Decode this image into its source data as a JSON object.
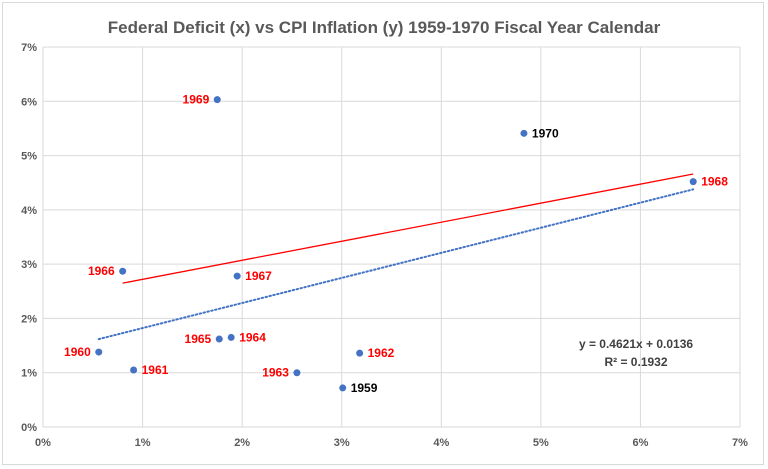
{
  "chart_data": {
    "type": "scatter",
    "title": "Federal Deficit (x) vs CPI Inflation (y) 1959-1970 Fiscal Year Calendar",
    "xlim": [
      0,
      0.07
    ],
    "ylim": [
      0,
      0.07
    ],
    "x_ticks": [
      "0%",
      "1%",
      "2%",
      "3%",
      "4%",
      "5%",
      "6%",
      "7%"
    ],
    "y_ticks": [
      "0%",
      "1%",
      "2%",
      "3%",
      "4%",
      "5%",
      "6%",
      "7%"
    ],
    "grid": true,
    "points": [
      {
        "label": "1959",
        "x": 0.0301,
        "y": 0.0072,
        "label_color": "#000000",
        "label_pos": "right"
      },
      {
        "label": "1960",
        "x": 0.0056,
        "y": 0.0138,
        "label_color": "#ff0000",
        "label_pos": "left"
      },
      {
        "label": "1961",
        "x": 0.0091,
        "y": 0.0105,
        "label_color": "#ff0000",
        "label_pos": "right"
      },
      {
        "label": "1962",
        "x": 0.0318,
        "y": 0.0136,
        "label_color": "#ff0000",
        "label_pos": "right"
      },
      {
        "label": "1963",
        "x": 0.0255,
        "y": 0.01,
        "label_color": "#ff0000",
        "label_pos": "left"
      },
      {
        "label": "1964",
        "x": 0.0189,
        "y": 0.0165,
        "label_color": "#ff0000",
        "label_pos": "right"
      },
      {
        "label": "1965",
        "x": 0.0177,
        "y": 0.0162,
        "label_color": "#ff0000",
        "label_pos": "left"
      },
      {
        "label": "1966",
        "x": 0.008,
        "y": 0.0287,
        "label_color": "#ff0000",
        "label_pos": "left"
      },
      {
        "label": "1967",
        "x": 0.0195,
        "y": 0.0278,
        "label_color": "#ff0000",
        "label_pos": "right"
      },
      {
        "label": "1968",
        "x": 0.0653,
        "y": 0.0452,
        "label_color": "#ff0000",
        "label_pos": "right"
      },
      {
        "label": "1969",
        "x": 0.0175,
        "y": 0.0603,
        "label_color": "#ff0000",
        "label_pos": "left"
      },
      {
        "label": "1970",
        "x": 0.0483,
        "y": 0.0541,
        "label_color": "#000000",
        "label_pos": "right"
      }
    ],
    "trendline": {
      "slope": 0.4621,
      "intercept": 0.0136,
      "x_range": [
        0.0056,
        0.0653
      ],
      "style": "dotted",
      "color": "#4472c4"
    },
    "red_line": {
      "x": [
        0.008,
        0.0653
      ],
      "y": [
        0.0265,
        0.0466
      ],
      "color": "#ff0000"
    },
    "equation_text": "y = 0.4621x + 0.0136",
    "r2_text": "R² = 0.1932"
  }
}
